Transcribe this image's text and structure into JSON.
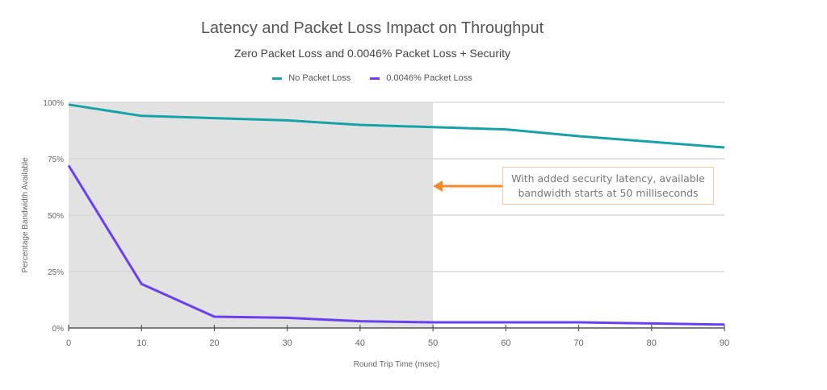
{
  "chart_data": {
    "type": "line",
    "title": "Latency and Packet Loss Impact on Throughput",
    "subtitle": "Zero Packet Loss and 0.0046% Packet Loss + Security",
    "xlabel": "Round Trip Time (msec)",
    "ylabel": "Percentage Bandwidth Available",
    "x": [
      0,
      10,
      20,
      30,
      40,
      50,
      60,
      70,
      80,
      90
    ],
    "xlim": [
      0,
      90
    ],
    "ylim": [
      0,
      100
    ],
    "xticks": [
      "0",
      "10",
      "20",
      "30",
      "40",
      "50",
      "60",
      "70",
      "80",
      "90"
    ],
    "yticks": [
      "0%",
      "25%",
      "50%",
      "75%",
      "100%"
    ],
    "grid": true,
    "legend_position": "top",
    "shaded_region": [
      0,
      50
    ],
    "series": [
      {
        "name": "No Packet Loss",
        "color": "#17a2a8",
        "values": [
          99,
          94,
          93,
          92,
          90,
          89,
          88,
          85,
          82.5,
          80
        ]
      },
      {
        "name": "0.0046% Packet Loss",
        "color": "#6a3ff0",
        "values": [
          72,
          19.5,
          5,
          4.5,
          3,
          2.5,
          2.5,
          2.5,
          2,
          1.5
        ]
      }
    ],
    "annotation": {
      "lines": [
        "With added security latency, available",
        "bandwidth starts at 50 milliseconds"
      ],
      "points_to_x": 50,
      "color": "#f58a2e"
    }
  }
}
